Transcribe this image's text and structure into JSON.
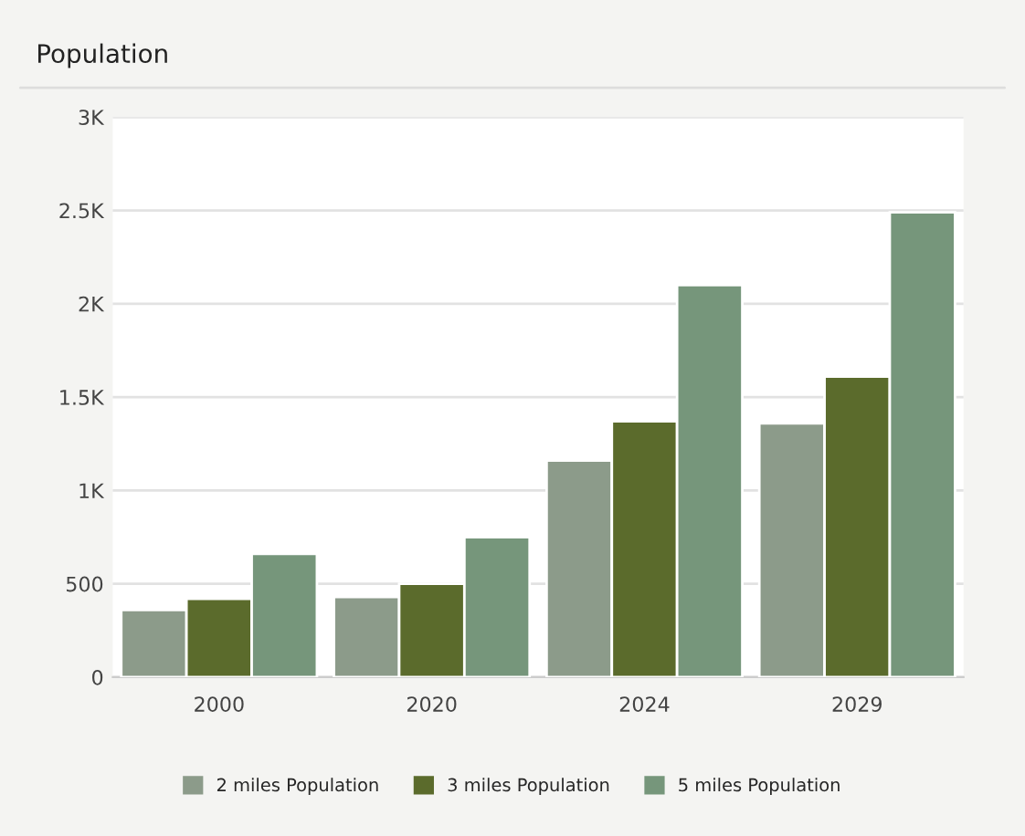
{
  "chart_data": {
    "type": "bar",
    "title": "Population",
    "categories": [
      "2000",
      "2020",
      "2024",
      "2029"
    ],
    "series": [
      {
        "name": "2 miles Population",
        "color": "#8c9b8a",
        "values": [
          360,
          430,
          1160,
          1360
        ]
      },
      {
        "name": "3 miles Population",
        "color": "#5b6b2c",
        "values": [
          420,
          500,
          1370,
          1610
        ]
      },
      {
        "name": "5 miles Population",
        "color": "#76967b",
        "values": [
          660,
          750,
          2100,
          2490
        ]
      }
    ],
    "ylim": [
      0,
      3000
    ],
    "yticks": [
      0,
      500,
      {
        "value": 1000,
        "label": "1K"
      },
      {
        "value": 1500,
        "label": "1.5K"
      },
      {
        "value": 2000,
        "label": "2K"
      },
      {
        "value": 2500,
        "label": "2.5K"
      },
      {
        "value": 3000,
        "label": "3K"
      }
    ],
    "grid": "y",
    "legend": "bottom"
  }
}
